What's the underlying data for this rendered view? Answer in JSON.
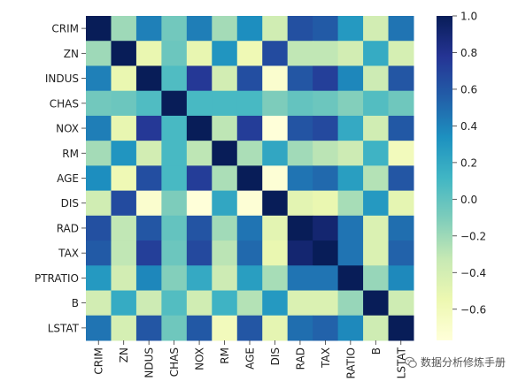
{
  "chart_data": {
    "type": "heatmap",
    "title": "",
    "xlabel": "",
    "ylabel": "",
    "variables": [
      "CRIM",
      "ZN",
      "INDUS",
      "CHAS",
      "NOX",
      "RM",
      "AGE",
      "DIS",
      "RAD",
      "TAX",
      "PTRATIO",
      "B",
      "LSTAT"
    ],
    "x_tick_labels": [
      "CRIM",
      "ZN",
      "NDUS",
      "CHAS",
      "NOX",
      "RM",
      "AGE",
      "DIS",
      "RAD",
      "TAX",
      "RATIO",
      "B",
      "LSTAT"
    ],
    "y_tick_labels": [
      "CRIM",
      "ZN",
      "INDUS",
      "CHAS",
      "NOX",
      "RM",
      "AGE",
      "DIS",
      "RAD",
      "TAX",
      "PTRATIO",
      "B",
      "LSTAT"
    ],
    "matrix": [
      [
        1.0,
        -0.2,
        0.41,
        -0.06,
        0.42,
        -0.22,
        0.35,
        -0.38,
        0.63,
        0.58,
        0.29,
        -0.39,
        0.46
      ],
      [
        -0.2,
        1.0,
        -0.53,
        -0.04,
        -0.52,
        0.31,
        -0.57,
        0.66,
        -0.31,
        -0.31,
        -0.39,
        0.18,
        -0.41
      ],
      [
        0.41,
        -0.53,
        1.0,
        0.06,
        0.76,
        -0.39,
        0.64,
        -0.71,
        0.6,
        0.72,
        0.38,
        -0.36,
        0.6
      ],
      [
        -0.06,
        -0.04,
        0.06,
        1.0,
        0.09,
        0.09,
        0.09,
        -0.1,
        -0.01,
        -0.04,
        -0.12,
        0.05,
        -0.05
      ],
      [
        0.42,
        -0.52,
        0.76,
        0.09,
        1.0,
        -0.3,
        0.73,
        -0.77,
        0.61,
        0.67,
        0.19,
        -0.38,
        0.59
      ],
      [
        -0.22,
        0.31,
        -0.39,
        0.09,
        -0.3,
        1.0,
        -0.24,
        0.21,
        -0.21,
        -0.29,
        -0.36,
        0.13,
        -0.61
      ],
      [
        0.35,
        -0.57,
        0.64,
        0.09,
        0.73,
        -0.24,
        1.0,
        -0.75,
        0.46,
        0.51,
        0.26,
        -0.27,
        0.6
      ],
      [
        -0.38,
        0.66,
        -0.71,
        -0.1,
        -0.77,
        0.21,
        -0.75,
        1.0,
        -0.49,
        -0.53,
        -0.23,
        0.29,
        -0.5
      ],
      [
        0.63,
        -0.31,
        0.6,
        -0.01,
        0.61,
        -0.21,
        0.46,
        -0.49,
        1.0,
        0.91,
        0.46,
        -0.44,
        0.49
      ],
      [
        0.58,
        -0.31,
        0.72,
        -0.04,
        0.67,
        -0.29,
        0.51,
        -0.53,
        0.91,
        1.0,
        0.46,
        -0.44,
        0.54
      ],
      [
        0.29,
        -0.39,
        0.38,
        -0.12,
        0.19,
        -0.36,
        0.26,
        -0.23,
        0.46,
        0.46,
        1.0,
        -0.18,
        0.37
      ],
      [
        -0.39,
        0.18,
        -0.36,
        0.05,
        -0.38,
        0.13,
        -0.27,
        0.29,
        -0.44,
        -0.44,
        -0.18,
        1.0,
        -0.37
      ],
      [
        0.46,
        -0.41,
        0.6,
        -0.05,
        0.59,
        -0.61,
        0.6,
        -0.5,
        0.49,
        0.54,
        0.37,
        -0.37,
        1.0
      ]
    ],
    "vmin": -0.77,
    "vmax": 1.0,
    "colormap": "YlGnBu",
    "colormap_stops": [
      "#ffffd9",
      "#edf8b1",
      "#c7e9b4",
      "#7fcdbb",
      "#41b6c4",
      "#1d91c0",
      "#225ea8",
      "#253494",
      "#081d58"
    ],
    "colorbar": {
      "ticks": [
        1.0,
        0.8,
        0.6,
        0.4,
        0.2,
        0.0,
        -0.2,
        -0.4,
        -0.6
      ],
      "tick_labels": [
        "1.0",
        "0.8",
        "0.6",
        "0.4",
        "0.2",
        "0.0",
        "−0.2",
        "−0.4",
        "−0.6"
      ]
    },
    "grid": false,
    "legend": "colorbar-right"
  },
  "watermark": {
    "text": "数据分析修炼手册",
    "icon": "wechat-icon"
  }
}
